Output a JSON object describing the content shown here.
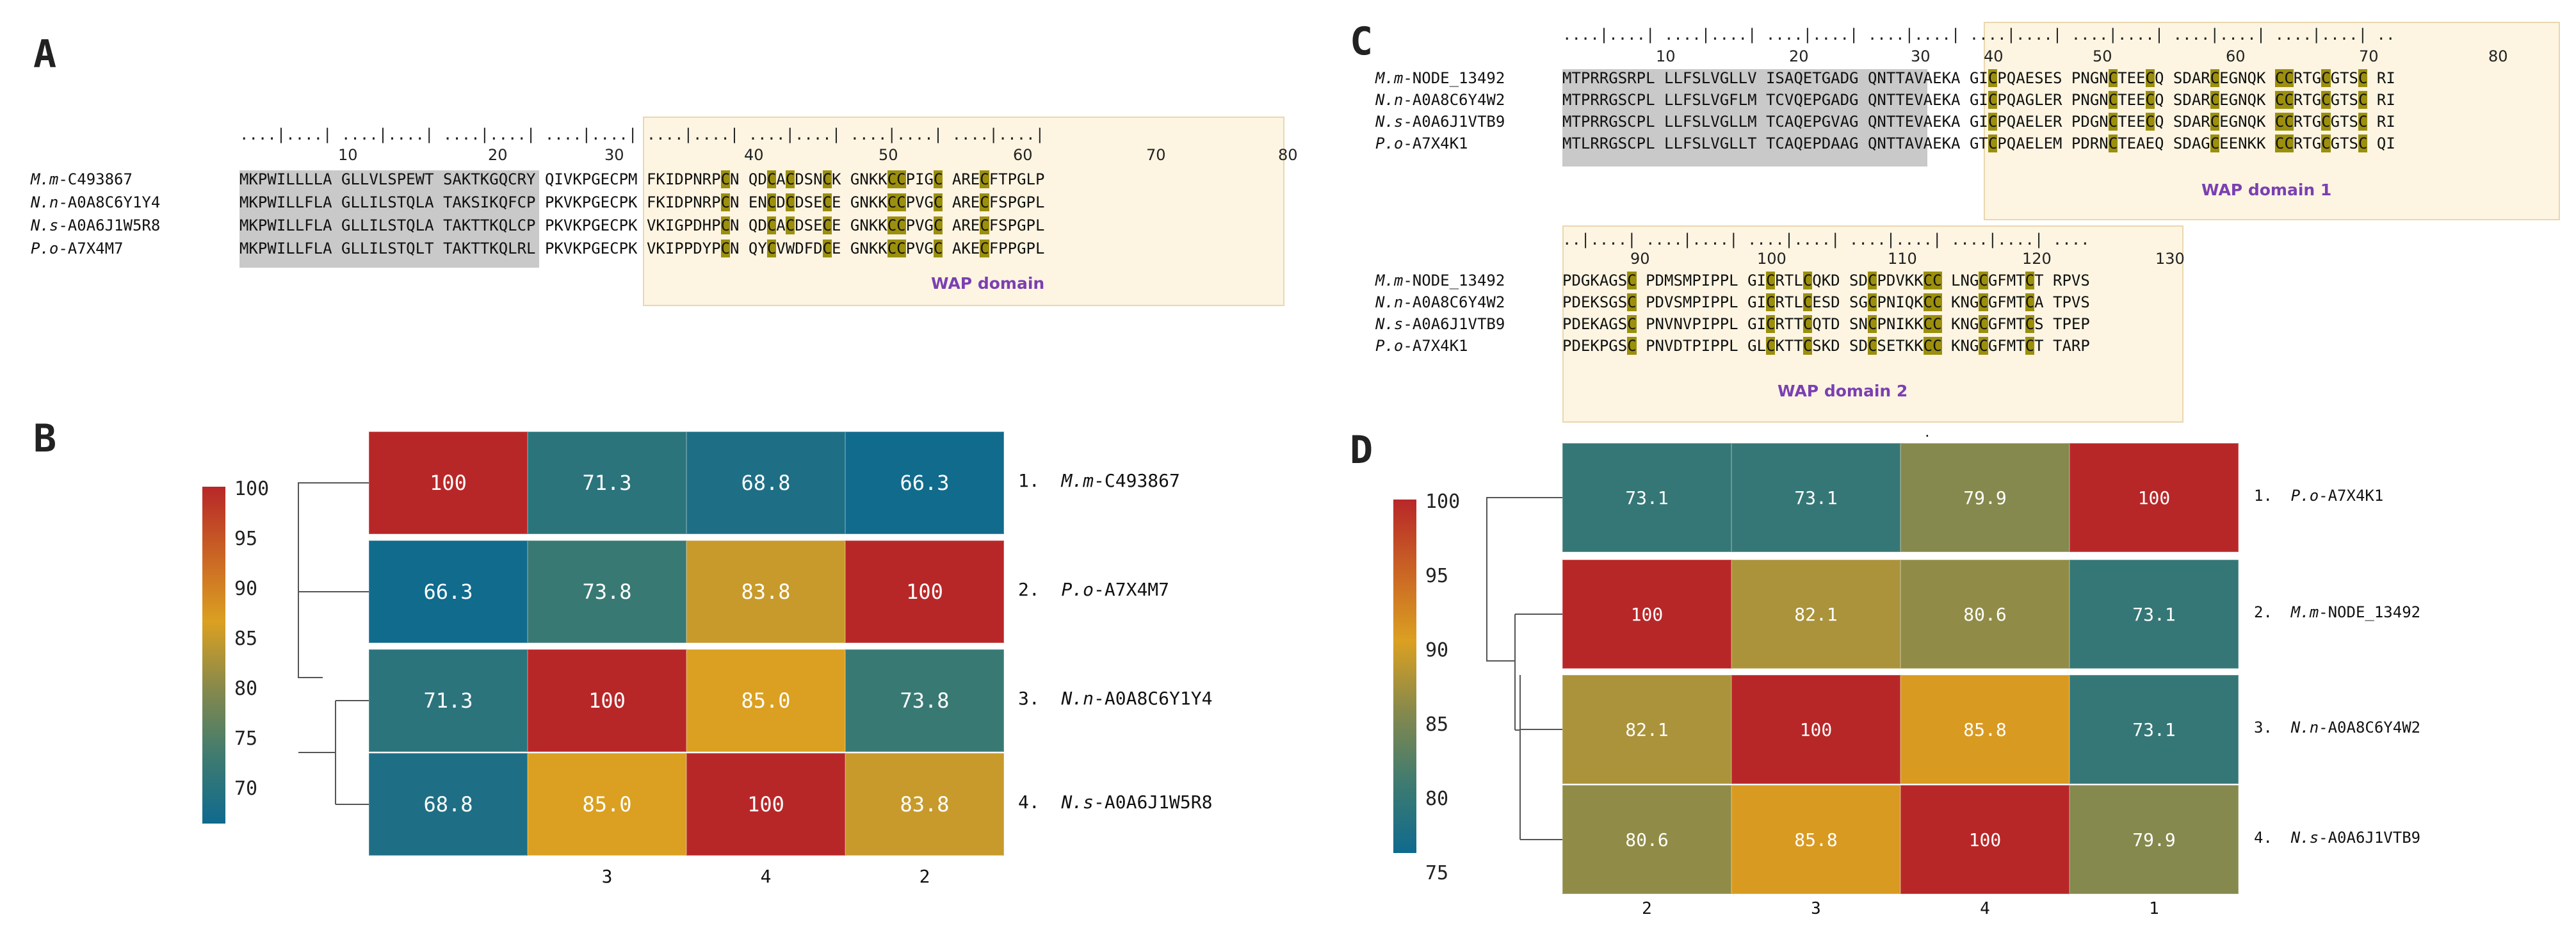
{
  "panels": {
    "A": "A",
    "B": "B",
    "C": "C",
    "D": "D"
  },
  "alignment_A": {
    "ruler_numbers": [
      "10",
      "20",
      "30",
      "40",
      "50",
      "60",
      "70",
      "80"
    ],
    "domain_label": "WAP domain",
    "rows": [
      {
        "prefix": "M.m",
        "id": "-C493867",
        "seq": "MKPWILLLLA GLLVLSPEWT SAKTKGQCRY QIVKPGECPM FKIDPNRPCN QDCACDSNCK GNKKCCPIGC ARECFTPGLP"
      },
      {
        "prefix": "N.n",
        "id": "-A0A8C6Y1Y4",
        "seq": "MKPWILLFLA GLLILSTQLA TAKSIKQFCP PKVKPGECPK FKIDPNRPCN ENCDCDSECE GNKKCCPVGC ARECFSPGPL"
      },
      {
        "prefix": "N.s",
        "id": "-A0A6J1W5R8",
        "seq": "MKPWILLFLA GLLILSTQLA TAKTTKQLCP PKVKPGECPK VKIGPDHPCN QDCACDSECE GNKKCCPVGC ARECFSPGPL"
      },
      {
        "prefix": "P.o",
        "id": "-A7X4M7",
        "seq": "MKPWILLFLA GLLILSTQLT TAKTTKQLRL PKVKPGECPK VKIPPDYPCN QYCVWDFDCE GNKKCCPVGC AKECFPPGPL"
      }
    ]
  },
  "alignment_C": {
    "ruler1_numbers": [
      "10",
      "20",
      "30",
      "40",
      "50",
      "60",
      "70",
      "80"
    ],
    "ruler2_numbers": [
      "90",
      "100",
      "110",
      "120",
      "130"
    ],
    "domain1_label": "WAP domain 1",
    "domain2_label": "WAP domain 2",
    "rows1": [
      {
        "prefix": "M.m",
        "id": "-NODE_13492",
        "seq": "MTPRRGSRPL LLFSLVGLLV ISAQETGADG QNTTAVAEKA GICPQAESES PNGNCTEECQ SDARCEGNQK CCRTGCGTSC RI"
      },
      {
        "prefix": "N.n",
        "id": "-A0A8C6Y4W2",
        "seq": "MTPRRGSCPL LLFSLVGFLM TCVQEPGADG QNTTEVAEKA GICPQAGLER PNGNCTEECQ SDARCEGNQK CCRTGCGTSC RI"
      },
      {
        "prefix": "N.s",
        "id": "-A0A6J1VTB9",
        "seq": "MTPRRGSCPL LLFSLVGLLM TCAQEPGVAG QNTTEVAEKA GICPQAELER PDGNCTEECQ SDARCEGNQK CCRTGCGTSC RI"
      },
      {
        "prefix": "P.o",
        "id": "-A7X4K1",
        "seq": "MTLRRGSCPL LLFSLVGLLT TCAQEPDAAG QNTTAVAEKA GTCPQAELEM PDRNCTEAEQ SDAGCEENKK CCRTGCGTSC QI"
      }
    ],
    "rows2": [
      {
        "prefix": "M.m",
        "id": "-NODE_13492",
        "seq": "PDGKAGSC PDMSMPIPPL GICRTLCQKD SDCPDVKKCC LNGCGFMTCT RPVS"
      },
      {
        "prefix": "N.n",
        "id": "-A0A8C6Y4W2",
        "seq": "PDEKSGSC PDVSMPIPPL GICRTLCESD SGCPNIQKCC KNGCGFMTCA TPVS"
      },
      {
        "prefix": "N.s",
        "id": "-A0A6J1VTB9",
        "seq": "PDEKAGSC PNVNVPIPPL GICRTTCQTD SNCPNIKKCC KNGCGFMTCS TPEP"
      },
      {
        "prefix": "P.o",
        "id": "-A7X4K1",
        "seq": "PDEKPGSC PNVDTPIPPL GLCKTTCSKD SDCSETKKCC KNGCGFMTCT TARP"
      }
    ],
    "dot": "."
  },
  "heatmap_B": {
    "colorbar_ticks": [
      "100",
      "95",
      "90",
      "85",
      "80",
      "75",
      "70"
    ],
    "row_labels": [
      {
        "num": "1.",
        "prefix": "M.m",
        "id": "-C493867"
      },
      {
        "num": "2.",
        "prefix": "P.o",
        "id": "-A7X4M7"
      },
      {
        "num": "3.",
        "prefix": "N.n",
        "id": "-A0A8C6Y1Y4"
      },
      {
        "num": "4.",
        "prefix": "N.s",
        "id": "-A0A6J1W5R8"
      }
    ],
    "col_labels": [
      "",
      "3",
      "4",
      "2"
    ],
    "values": [
      [
        "100",
        "71.3",
        "68.8",
        "66.3"
      ],
      [
        "66.3",
        "73.8",
        "83.8",
        "100"
      ],
      [
        "71.3",
        "100",
        "85.0",
        "73.8"
      ],
      [
        "68.8",
        "85.0",
        "100",
        "83.8"
      ]
    ]
  },
  "heatmap_D": {
    "colorbar_ticks": [
      "100",
      "95",
      "90",
      "85",
      "80",
      "75"
    ],
    "row_labels": [
      {
        "num": "1.",
        "prefix": "P.o",
        "id": "-A7X4K1"
      },
      {
        "num": "2.",
        "prefix": "M.m",
        "id": "-NODE_13492"
      },
      {
        "num": "3.",
        "prefix": "N.n",
        "id": "-A0A8C6Y4W2"
      },
      {
        "num": "4.",
        "prefix": "N.s",
        "id": "-A0A6J1VTB9"
      }
    ],
    "col_labels": [
      "2",
      "3",
      "4",
      "1"
    ],
    "values": [
      [
        "73.1",
        "73.1",
        "79.9",
        "100"
      ],
      [
        "100",
        "82.1",
        "80.6",
        "73.1"
      ],
      [
        "82.1",
        "100",
        "85.8",
        "73.1"
      ],
      [
        "80.6",
        "85.8",
        "100",
        "79.9"
      ]
    ]
  },
  "colors": {
    "c100": "#b82728",
    "c85": "#dba021",
    "c80": "#86894c",
    "c75": "#3f7b70",
    "c70": "#0f6a8e",
    "cysteine_highlight": "#9b8f0d",
    "signal_peptide": "#c9c9c9",
    "domain_box": "#fdf5e2",
    "domain_label": "#7b3fb1"
  }
}
